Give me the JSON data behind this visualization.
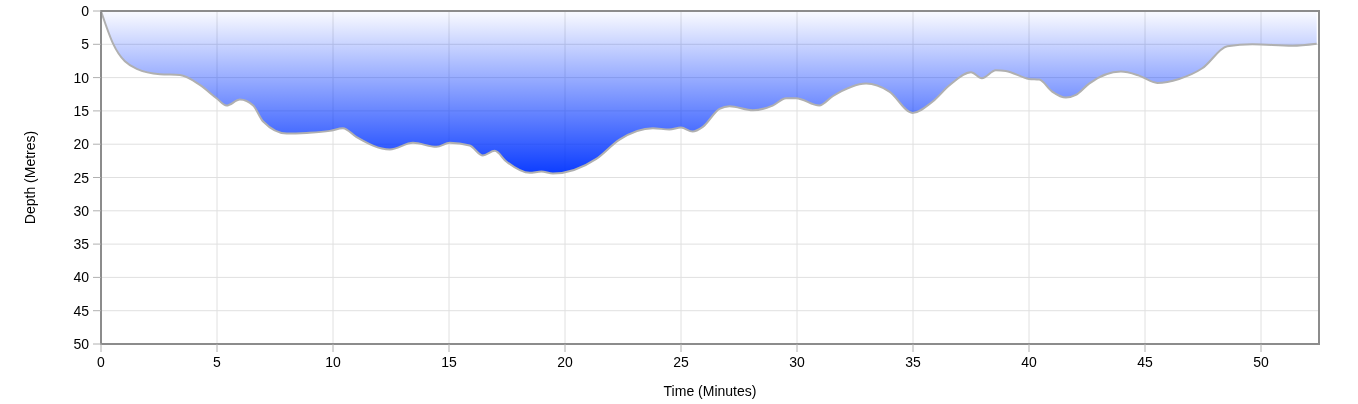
{
  "chart_data": {
    "type": "area",
    "xlabel": "Time (Minutes)",
    "ylabel": "Depth (Metres)",
    "xlim": [
      0,
      52.5
    ],
    "ylim": [
      50,
      0
    ],
    "xticks": [
      0,
      5,
      10,
      15,
      20,
      25,
      30,
      35,
      40,
      45,
      50
    ],
    "yticks": [
      0,
      5,
      10,
      15,
      20,
      25,
      30,
      35,
      40,
      45,
      50
    ],
    "grid": true,
    "series": [
      {
        "color": "#0033ff",
        "x": [
          0,
          0.52,
          1.54,
          2.54,
          3.4,
          4.26,
          4.98,
          5.41,
          5.99,
          6.56,
          6.99,
          8.0,
          8.86,
          9.86,
          10.43,
          11.0,
          12.45,
          13.45,
          14.46,
          15.03,
          15.89,
          16.46,
          16.97,
          17.47,
          18.48,
          18.98,
          19.48,
          21.35,
          22.35,
          23.79,
          24.5,
          25.0,
          25.5,
          25.94,
          26.66,
          27.09,
          28.1,
          28.95,
          29.53,
          29.96,
          30.96,
          31.54,
          32.98,
          33.98,
          34.98,
          35.85,
          36.56,
          37.5,
          37.97,
          38.57,
          39.0,
          40.0,
          40.44,
          41.0,
          41.59,
          42.02,
          42.59,
          43.96,
          44.74,
          45.53,
          46.47,
          47.47,
          48.55,
          49.63,
          51.35,
          52.4
        ],
        "values": [
          0,
          4.9,
          8.7,
          9.5,
          9.6,
          11.1,
          13.1,
          14.2,
          13.3,
          14.2,
          16.6,
          18.4,
          18.3,
          18.0,
          17.6,
          18.9,
          20.8,
          19.8,
          20.4,
          19.8,
          20.2,
          21.7,
          21.0,
          22.6,
          24.3,
          24.1,
          24.4,
          22.2,
          19.3,
          17.6,
          17.8,
          17.5,
          18.1,
          17.4,
          14.7,
          14.3,
          14.9,
          14.2,
          13.1,
          13.1,
          14.2,
          12.8,
          10.9,
          12.1,
          15.3,
          13.6,
          11.2,
          9.2,
          10.1,
          8.9,
          9.0,
          10.2,
          10.3,
          12.1,
          13.0,
          12.6,
          10.9,
          9.1,
          9.7,
          10.8,
          10.2,
          8.6,
          5.3,
          5.0,
          5.2,
          4.9
        ]
      }
    ]
  }
}
